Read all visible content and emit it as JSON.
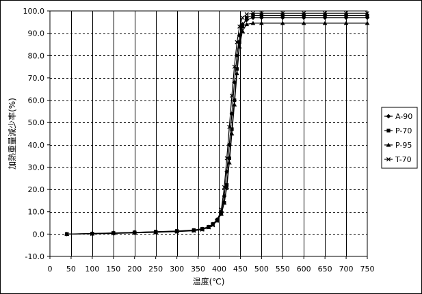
{
  "chart_data": {
    "type": "line",
    "title": "",
    "xlabel": "温度(℃)",
    "ylabel": "加熱重量減少率(%)",
    "xlim": [
      0,
      750
    ],
    "ylim": [
      -10,
      100
    ],
    "x_ticks": [
      "0",
      "50",
      "100",
      "150",
      "200",
      "250",
      "300",
      "350",
      "400",
      "450",
      "500",
      "550",
      "600",
      "650",
      "700",
      "750"
    ],
    "y_ticks": [
      "-10.0",
      "0.0",
      "10.0",
      "20.0",
      "30.0",
      "40.0",
      "50.0",
      "60.0",
      "70.0",
      "80.0",
      "90.0",
      "100.0"
    ],
    "grid": {
      "vertical": "solid",
      "horizontal": "dashed"
    },
    "legend_position": "right",
    "series": [
      {
        "name": "A-90",
        "marker": "diamond",
        "points": [
          [
            40,
            0
          ],
          [
            100,
            0.2
          ],
          [
            150,
            0.4
          ],
          [
            200,
            0.6
          ],
          [
            250,
            0.9
          ],
          [
            300,
            1.2
          ],
          [
            340,
            1.6
          ],
          [
            360,
            2.2
          ],
          [
            375,
            3.2
          ],
          [
            385,
            4.5
          ],
          [
            395,
            6.5
          ],
          [
            405,
            10
          ],
          [
            412,
            17
          ],
          [
            418,
            28
          ],
          [
            424,
            40
          ],
          [
            430,
            54
          ],
          [
            436,
            68
          ],
          [
            442,
            80
          ],
          [
            448,
            89
          ],
          [
            455,
            94
          ],
          [
            465,
            96
          ],
          [
            480,
            97
          ],
          [
            500,
            97
          ],
          [
            550,
            97
          ],
          [
            600,
            97
          ],
          [
            650,
            97
          ],
          [
            700,
            97
          ],
          [
            750,
            97
          ]
        ]
      },
      {
        "name": "P-70",
        "marker": "square",
        "points": [
          [
            40,
            0
          ],
          [
            100,
            0.2
          ],
          [
            150,
            0.5
          ],
          [
            200,
            0.8
          ],
          [
            250,
            1.1
          ],
          [
            300,
            1.4
          ],
          [
            340,
            1.8
          ],
          [
            360,
            2.4
          ],
          [
            375,
            3.3
          ],
          [
            385,
            4.5
          ],
          [
            395,
            6.2
          ],
          [
            405,
            9.5
          ],
          [
            412,
            14
          ],
          [
            418,
            22
          ],
          [
            424,
            34
          ],
          [
            430,
            47
          ],
          [
            436,
            60
          ],
          [
            442,
            74
          ],
          [
            448,
            86
          ],
          [
            455,
            93
          ],
          [
            465,
            97
          ],
          [
            480,
            98
          ],
          [
            500,
            98
          ],
          [
            550,
            98
          ],
          [
            600,
            98
          ],
          [
            650,
            98
          ],
          [
            700,
            98
          ],
          [
            750,
            98
          ]
        ]
      },
      {
        "name": "P-95",
        "marker": "triangle",
        "points": [
          [
            40,
            0
          ],
          [
            100,
            0.3
          ],
          [
            150,
            0.5
          ],
          [
            200,
            0.8
          ],
          [
            250,
            1.0
          ],
          [
            300,
            1.3
          ],
          [
            340,
            1.7
          ],
          [
            360,
            2.3
          ],
          [
            375,
            3.1
          ],
          [
            385,
            4.2
          ],
          [
            395,
            6.0
          ],
          [
            405,
            9.0
          ],
          [
            412,
            14
          ],
          [
            418,
            21
          ],
          [
            424,
            32
          ],
          [
            430,
            45
          ],
          [
            436,
            58
          ],
          [
            442,
            72
          ],
          [
            448,
            84
          ],
          [
            455,
            91
          ],
          [
            465,
            94
          ],
          [
            480,
            94.5
          ],
          [
            500,
            94.5
          ],
          [
            550,
            94.5
          ],
          [
            600,
            94.5
          ],
          [
            650,
            94.5
          ],
          [
            700,
            94.5
          ],
          [
            750,
            94.5
          ]
        ]
      },
      {
        "name": "T-70",
        "marker": "x",
        "points": [
          [
            40,
            0
          ],
          [
            100,
            0.1
          ],
          [
            150,
            0.3
          ],
          [
            200,
            0.5
          ],
          [
            250,
            0.8
          ],
          [
            300,
            1.1
          ],
          [
            340,
            1.5
          ],
          [
            360,
            2.0
          ],
          [
            375,
            3.0
          ],
          [
            385,
            4.0
          ],
          [
            395,
            6.0
          ],
          [
            405,
            11
          ],
          [
            412,
            21
          ],
          [
            418,
            34
          ],
          [
            424,
            48
          ],
          [
            430,
            62
          ],
          [
            436,
            75
          ],
          [
            442,
            86
          ],
          [
            448,
            93
          ],
          [
            455,
            97
          ],
          [
            465,
            98.5
          ],
          [
            480,
            99
          ],
          [
            500,
            99
          ],
          [
            550,
            99
          ],
          [
            600,
            99
          ],
          [
            650,
            99
          ],
          [
            700,
            99
          ],
          [
            750,
            99
          ]
        ]
      }
    ]
  }
}
